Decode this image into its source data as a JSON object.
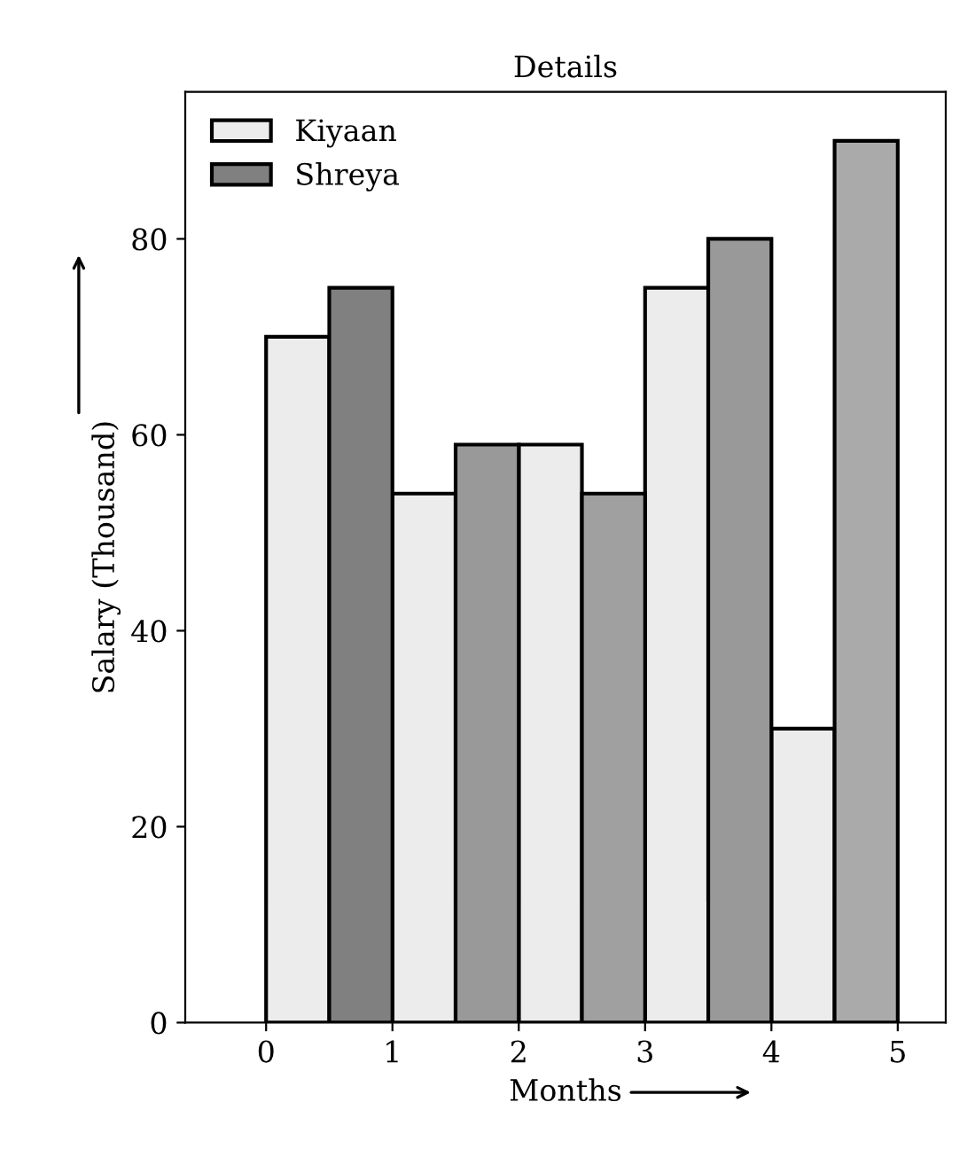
{
  "chart_data": {
    "type": "bar",
    "title": "Details",
    "xlabel": "Months",
    "ylabel": "Salary (Thousand)",
    "series": [
      {
        "name": "Kiyaan",
        "x": [
          0.25,
          1.25,
          2.25,
          3.25,
          4.25
        ],
        "colors": [
          "#ececec",
          "#ececec",
          "#ececec",
          "#ececec",
          "#ececec"
        ],
        "values": [
          70,
          54,
          59,
          75,
          30
        ]
      },
      {
        "name": "Shreya",
        "x": [
          0.75,
          1.75,
          2.75,
          3.75,
          4.75
        ],
        "colors": [
          "#808080",
          "#999999",
          "#a0a0a0",
          "#999999",
          "#aaaaaa"
        ],
        "values": [
          75,
          59,
          54,
          80,
          90
        ]
      }
    ],
    "xlim": [
      -0.64,
      5.38
    ],
    "xticks": [
      0,
      1,
      2,
      3,
      4,
      5
    ],
    "ylim": [
      0,
      95
    ],
    "yticks": [
      0,
      20,
      40,
      60,
      80
    ],
    "grid": false,
    "legend": "top left"
  }
}
